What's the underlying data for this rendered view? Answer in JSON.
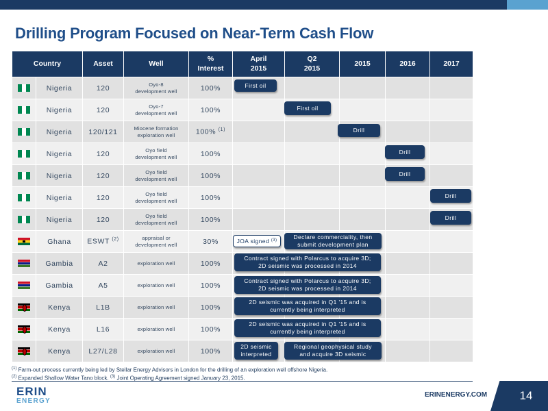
{
  "title": "Drilling Program Focused on Near-Term Cash Flow",
  "headers": {
    "country": "Country",
    "asset": "Asset",
    "well": "Well",
    "interest_line1": "%",
    "interest_line2": "Interest",
    "april_line1": "April",
    "april_line2": "2015",
    "q2_line1": "Q2",
    "q2_line2": "2015",
    "y2015": "2015",
    "y2016": "2016",
    "y2017": "2017"
  },
  "rows": [
    {
      "country": "Nigeria",
      "asset": "120",
      "well_line1": "Oyo-8",
      "well_line2": "development well",
      "interest": "100%",
      "flag": "nigeria-flag-icon"
    },
    {
      "country": "Nigeria",
      "asset": "120",
      "well_line1": "Oyo-7",
      "well_line2": "development well",
      "interest": "100%",
      "flag": "nigeria-flag-icon"
    },
    {
      "country": "Nigeria",
      "asset": "120/121",
      "well_line1": "Miocene formation",
      "well_line2": "exploration well",
      "interest": "100%",
      "interest_note": "(1)",
      "flag": "nigeria-flag-icon"
    },
    {
      "country": "Nigeria",
      "asset": "120",
      "well_line1": "Oyo field",
      "well_line2": "development well",
      "interest": "100%",
      "flag": "nigeria-flag-icon"
    },
    {
      "country": "Nigeria",
      "asset": "120",
      "well_line1": "Oyo field",
      "well_line2": "development well",
      "interest": "100%",
      "flag": "nigeria-flag-icon"
    },
    {
      "country": "Nigeria",
      "asset": "120",
      "well_line1": "Oyo field",
      "well_line2": "development well",
      "interest": "100%",
      "flag": "nigeria-flag-icon"
    },
    {
      "country": "Nigeria",
      "asset": "120",
      "well_line1": "Oyo field",
      "well_line2": "development well",
      "interest": "100%",
      "flag": "nigeria-flag-icon"
    },
    {
      "country": "Ghana",
      "asset": "ESWT",
      "asset_note": "(2)",
      "well_line1": "appraisal or",
      "well_line2": "development well",
      "interest": "30%",
      "flag": "ghana-flag-icon"
    },
    {
      "country": "Gambia",
      "asset": "A2",
      "well_line1": "exploration well",
      "well_line2": "",
      "interest": "100%",
      "flag": "gambia-flag-icon"
    },
    {
      "country": "Gambia",
      "asset": "A5",
      "well_line1": "exploration well",
      "well_line2": "",
      "interest": "100%",
      "flag": "gambia-flag-icon"
    },
    {
      "country": "Kenya",
      "asset": "L1B",
      "well_line1": "exploration well",
      "well_line2": "",
      "interest": "100%",
      "flag": "kenya-flag-icon"
    },
    {
      "country": "Kenya",
      "asset": "L16",
      "well_line1": "exploration well",
      "well_line2": "",
      "interest": "100%",
      "flag": "kenya-flag-icon"
    },
    {
      "country": "Kenya",
      "asset": "L27/L28",
      "well_line1": "exploration well",
      "well_line2": "",
      "interest": "100%",
      "flag": "kenya-flag-icon"
    }
  ],
  "milestones": {
    "r1_first_oil": "First oil",
    "r2_first_oil": "First oil",
    "r3_drill": "Drill",
    "r4_drill": "Drill",
    "r5_drill": "Drill",
    "r6_drill": "Drill",
    "r7_drill": "Drill",
    "r8_joa": "JOA signed",
    "r8_joa_note": "(3)",
    "r8_declare_line1": "Declare commerciality, then",
    "r8_declare_line2": "submit development plan",
    "r9_line1": "Contract signed with Polarcus to acquire 3D;",
    "r9_line2": "2D seismic was processed in 2014",
    "r10_line1": "Contract signed with Polarcus to acquire 3D;",
    "r10_line2": "2D seismic was processed in 2014",
    "r11_line1": "2D seismic was acquired in Q1 '15 and is",
    "r11_line2": "currently being interpreted",
    "r12_line1": "2D seismic was acquired in Q1 '15 and is",
    "r12_line2": "currently being interpreted",
    "r13_a_line1": "2D seismic",
    "r13_a_line2": "interpreted",
    "r13_b_line1": "Regional geophysical study",
    "r13_b_line2": "and acquire 3D seismic"
  },
  "footnotes": {
    "note1_mark": "(1)",
    "note1_text": "Farm-out process currently being led by Stellar Energy Advisors in London for the drilling of an exploration well offshore Nigeria.",
    "note2_mark": "(2)",
    "note2_text": "Expanded Shallow Water Tano block.",
    "note3_mark": "(3)",
    "note3_text": "Joint Operating Agreement signed January 23, 2015."
  },
  "footer": {
    "logo_top": "ERIN",
    "logo_bottom": "ENERGY",
    "url": "ERINENERGY.COM",
    "page_number": "14"
  }
}
